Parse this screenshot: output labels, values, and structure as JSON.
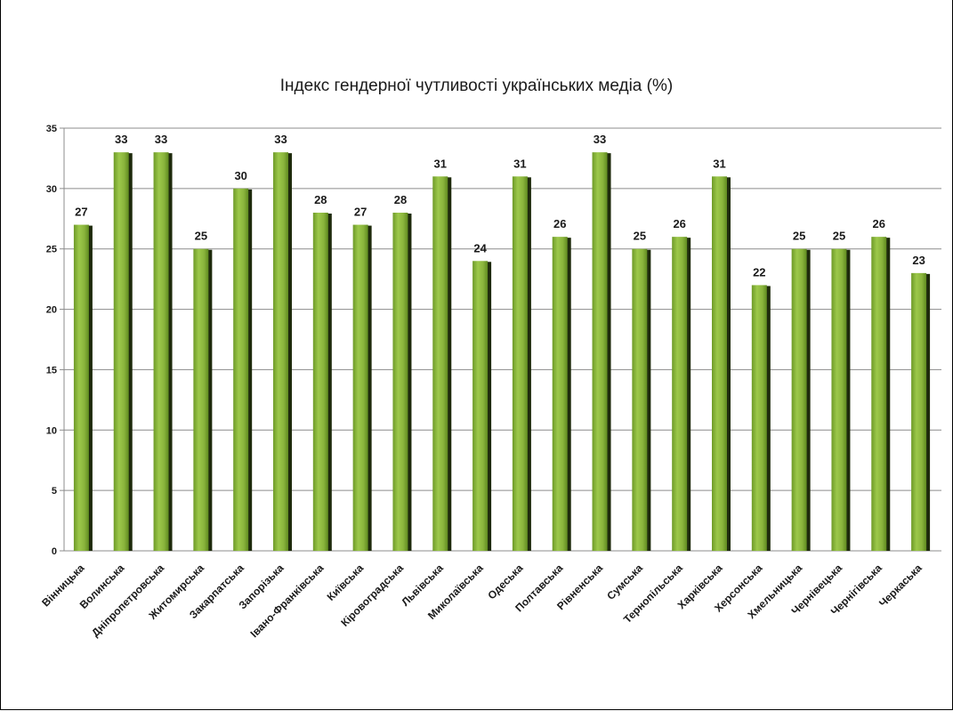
{
  "chart_data": {
    "type": "bar",
    "title": "Індекс гендерної чутливості українських медіа (%)",
    "xlabel": "",
    "ylabel": "",
    "ylim": [
      0,
      35
    ],
    "yticks": [
      0,
      5,
      10,
      15,
      20,
      25,
      30,
      35
    ],
    "grid": true,
    "legend": "none",
    "bar_color": "#8ab43c",
    "bar_shadow_color": "#1e2a0c",
    "categories": [
      "Вінницька",
      "Волинська",
      "Дніпропетровська",
      "Житомирська",
      "Закарпатська",
      "Запорізька",
      "Івано-Франківська",
      "Київська",
      "Кіровоградська",
      "Львівська",
      "Миколаївська",
      "Одеська",
      "Полтавська",
      "Рівненська",
      "Сумська",
      "Тернопільська",
      "Харківська",
      "Херсонська",
      "Хмельницька",
      "Чернівецька",
      "Чернігівська",
      "Черкаська"
    ],
    "values": [
      27,
      33,
      33,
      25,
      30,
      33,
      28,
      27,
      28,
      31,
      24,
      31,
      26,
      33,
      25,
      26,
      31,
      22,
      25,
      25,
      26,
      23
    ]
  }
}
